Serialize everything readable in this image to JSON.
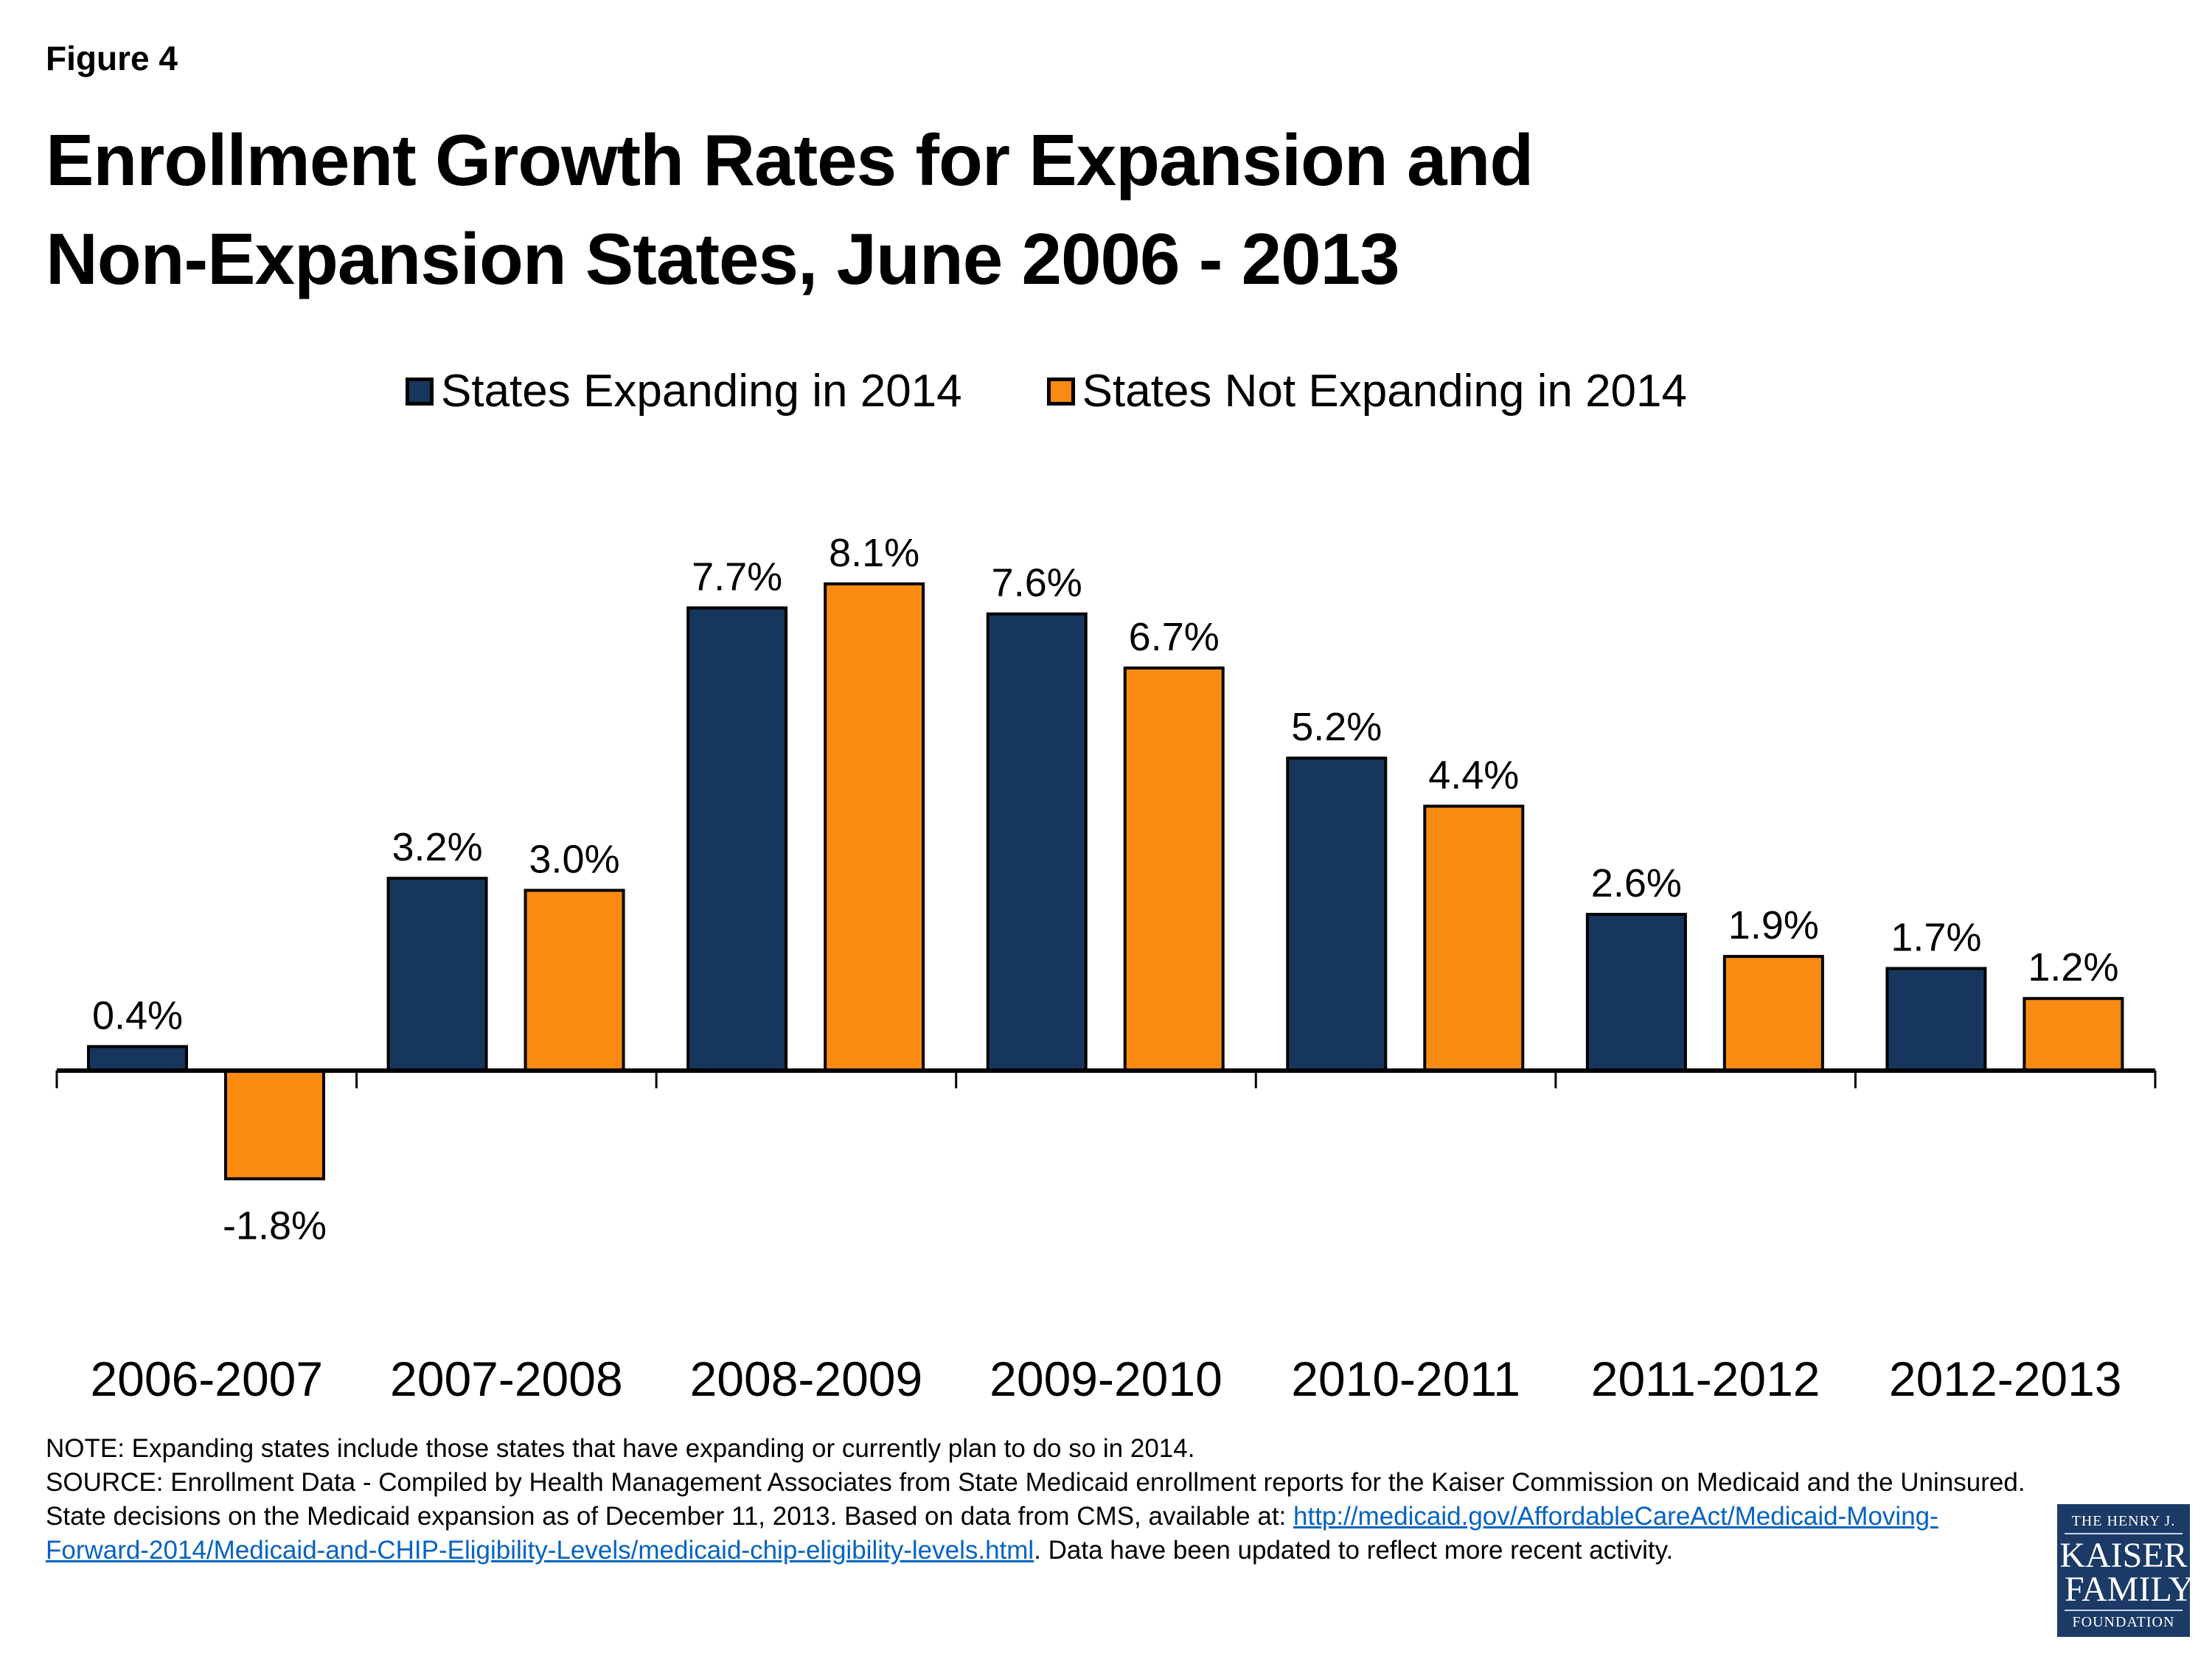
{
  "figure_label": "Figure 4",
  "title_lines": [
    "Enrollment Growth Rates for Expansion and",
    "Non-Expansion States, June 2006 - 2013"
  ],
  "colors": {
    "expanding": "#17365d",
    "not_expanding": "#f98b13"
  },
  "chart_data": {
    "type": "bar",
    "title": "Enrollment Growth Rates for Expansion and Non-Expansion States, June 2006 - 2013",
    "xlabel": "",
    "ylabel": "",
    "categories": [
      "2006-2007",
      "2007-2008",
      "2008-2009",
      "2009-2010",
      "2010-2011",
      "2011-2012",
      "2012-2013"
    ],
    "series": [
      {
        "name": "States Expanding in 2014",
        "values": [
          0.4,
          3.2,
          7.7,
          7.6,
          5.2,
          2.6,
          1.7
        ],
        "labels": [
          "0.4%",
          "3.2%",
          "7.7%",
          "7.6%",
          "5.2%",
          "2.6%",
          "1.7%"
        ]
      },
      {
        "name": "States Not Expanding in 2014",
        "values": [
          -1.8,
          3.0,
          8.1,
          6.7,
          4.4,
          1.9,
          1.2
        ],
        "labels": [
          "-1.8%",
          "3.0%",
          "8.1%",
          "6.7%",
          "4.4%",
          "1.9%",
          "1.2%"
        ]
      }
    ],
    "units": "%",
    "legend_position": "top-center",
    "grid": false,
    "y_axis_visible": false
  },
  "legend": {
    "expanding_label": "States Expanding in 2014",
    "not_expanding_label": "States Not Expanding in 2014"
  },
  "notes": {
    "note": "NOTE: Expanding states include those states that have expanding or currently plan to do so in 2014.",
    "source_prefix": "SOURCE: Enrollment Data - Compiled by Health Management Associates from State Medicaid enrollment reports for the Kaiser Commission on Medicaid and the Uninsured. State decisions on the Medicaid expansion as of December 11, 2013. Based on data from CMS, available at: ",
    "link_text": "http://medicaid.gov/AffordableCareAct/Medicaid-Moving-Forward-2014/Medicaid-and-CHIP-Eligibility-Levels/medicaid-chip-eligibility-levels.html",
    "source_suffix": ". Data have been updated to reflect more recent activity."
  },
  "logo": {
    "line1": "THE HENRY J.",
    "line2": "KAISER",
    "line3": "FAMILY",
    "line4": "FOUNDATION"
  }
}
